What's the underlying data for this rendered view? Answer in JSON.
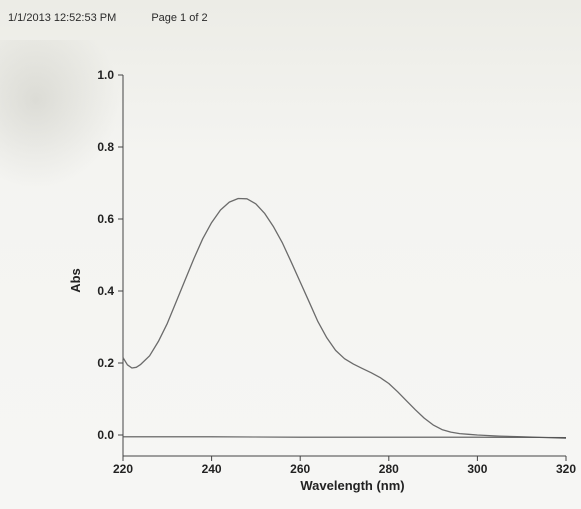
{
  "header": {
    "timestamp": "1/1/2013 12:52:53 PM",
    "page": "Page 1 of 2"
  },
  "chart_data": {
    "type": "line",
    "title": "",
    "xlabel": "Wavelength (nm)",
    "ylabel": "Abs",
    "xlim": [
      220,
      320
    ],
    "ylim": [
      0.0,
      1.0
    ],
    "x_ticks": [
      "220",
      "240",
      "260",
      "280",
      "300",
      "320"
    ],
    "y_ticks": [
      "0.0",
      "0.2",
      "0.4",
      "0.6",
      "0.8",
      "1.0"
    ],
    "grid": false,
    "legend": "none",
    "series": [
      {
        "x": [
          220,
          221,
          222,
          223,
          224,
          226,
          228,
          230,
          232,
          234,
          236,
          238,
          240,
          242,
          244,
          246,
          248,
          250,
          252,
          254,
          256,
          258,
          260,
          262,
          264,
          266,
          268,
          270,
          272,
          274,
          276,
          278,
          280,
          282,
          284,
          286,
          288,
          290,
          292,
          294,
          296,
          298,
          300,
          305,
          310,
          315,
          320
        ],
        "values": [
          0.215,
          0.195,
          0.186,
          0.188,
          0.196,
          0.22,
          0.26,
          0.31,
          0.37,
          0.43,
          0.49,
          0.545,
          0.59,
          0.625,
          0.647,
          0.657,
          0.656,
          0.642,
          0.615,
          0.578,
          0.533,
          0.48,
          0.425,
          0.37,
          0.315,
          0.27,
          0.235,
          0.212,
          0.197,
          0.185,
          0.173,
          0.16,
          0.143,
          0.12,
          0.095,
          0.07,
          0.047,
          0.028,
          0.015,
          0.008,
          0.004,
          0.002,
          0.0,
          -0.003,
          -0.005,
          -0.007,
          -0.009
        ]
      },
      {
        "x": [
          220,
          240,
          260,
          280,
          300,
          320
        ],
        "values": [
          -0.005,
          -0.005,
          -0.006,
          -0.006,
          -0.006,
          -0.007
        ]
      }
    ]
  }
}
